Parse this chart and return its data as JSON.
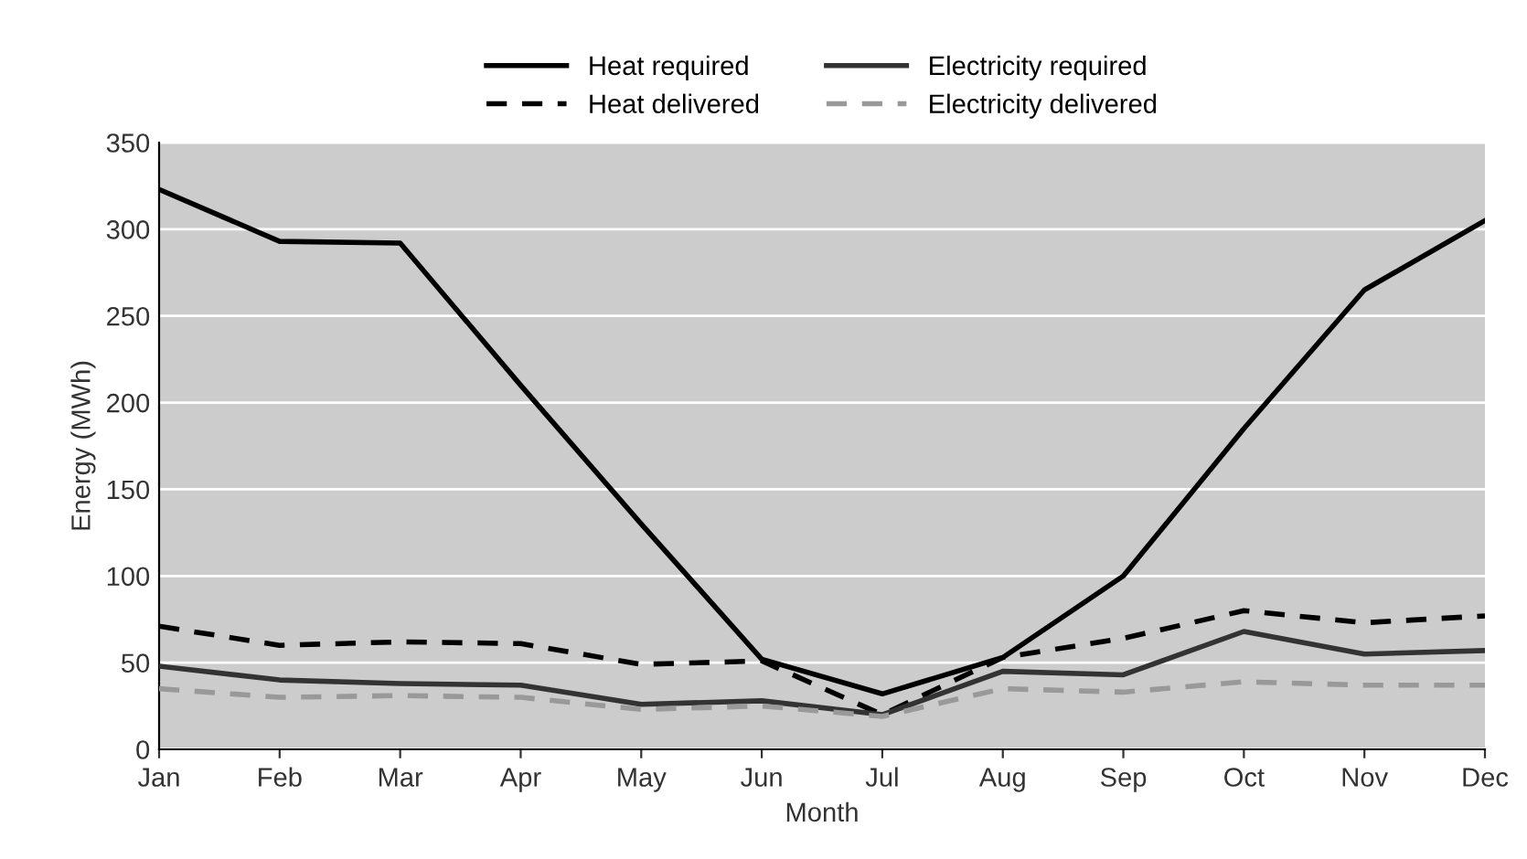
{
  "chart_data": {
    "type": "line",
    "xlabel": "Month",
    "ylabel": "Energy (MWh)",
    "categories": [
      "Jan",
      "Feb",
      "Mar",
      "Apr",
      "May",
      "Jun",
      "Jul",
      "Aug",
      "Sep",
      "Oct",
      "Nov",
      "Dec"
    ],
    "series": [
      {
        "name": "Heat required",
        "color": "#000000",
        "line_style": "solid",
        "values": [
          323,
          293,
          292,
          210,
          130,
          52,
          32,
          53,
          100,
          185,
          265,
          305
        ]
      },
      {
        "name": "Heat delivered",
        "color": "#000000",
        "line_style": "dashed",
        "values": [
          71,
          60,
          62,
          61,
          49,
          51,
          20,
          53,
          64,
          80,
          73,
          77
        ]
      },
      {
        "name": "Electricity required",
        "color": "#333333",
        "line_style": "solid",
        "values": [
          48,
          40,
          38,
          37,
          26,
          28,
          20,
          45,
          43,
          68,
          55,
          57
        ]
      },
      {
        "name": "Electricity delivered",
        "color": "#999999",
        "line_style": "dashed",
        "values": [
          35,
          30,
          31,
          30,
          23,
          25,
          19,
          35,
          33,
          39,
          37,
          37
        ]
      }
    ],
    "ylim": [
      0,
      350
    ],
    "yticks": [
      0,
      50,
      100,
      150,
      200,
      250,
      300,
      350
    ],
    "grid": "y",
    "legend": "top",
    "marker": "none"
  }
}
